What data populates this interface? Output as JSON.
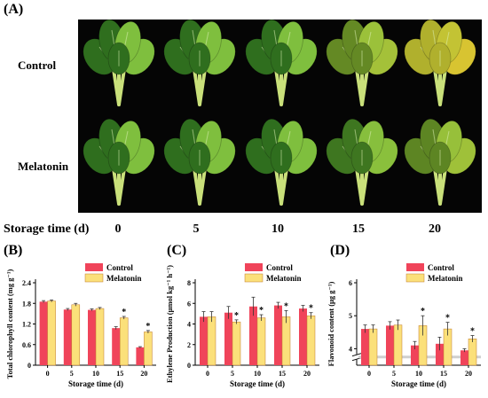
{
  "figure": {
    "panel_a": {
      "label": "(A)",
      "row_labels": [
        "Control",
        "Melatonin"
      ],
      "storage_title": "Storage time (d)",
      "storage_days": [
        "0",
        "5",
        "10",
        "15",
        "20"
      ]
    },
    "panel_b": {
      "label": "(B)"
    },
    "panel_c": {
      "label": "(C)"
    },
    "panel_d": {
      "label": "(D)"
    }
  },
  "colors": {
    "control": "#f0445a",
    "melatonin": "#fbe07a",
    "bar_stroke": "#c07a2a",
    "leaf_dark": "#2f6e1e",
    "leaf_light": "#7fbf3e",
    "leaf_yellow": "#d8c431",
    "stem": "#c9e07a"
  },
  "chart_data": [
    {
      "type": "bar",
      "panel": "(B)",
      "categories": [
        "0",
        "5",
        "10",
        "15",
        "20"
      ],
      "xlabel": "Storage time (d)",
      "ylabel": "Total chlorophyll content (mg g⁻¹)",
      "ylim": [
        0,
        2.4
      ],
      "yticks": [
        "0",
        "0.6",
        "1.2",
        "1.8",
        "2.4"
      ],
      "ytick_values": [
        0,
        0.6,
        1.2,
        1.8,
        2.4
      ],
      "legend": [
        "Control",
        "Melatonin"
      ],
      "legend_position": "top-right",
      "series": [
        {
          "name": "Control",
          "values": [
            1.85,
            1.62,
            1.61,
            1.08,
            0.52
          ],
          "errors": [
            0.03,
            0.03,
            0.03,
            0.04,
            0.02
          ]
        },
        {
          "name": "Melatonin",
          "values": [
            1.87,
            1.76,
            1.65,
            1.38,
            0.97
          ],
          "errors": [
            0.03,
            0.04,
            0.03,
            0.04,
            0.04
          ]
        }
      ],
      "significance": [
        "",
        "",
        "",
        "*",
        "*"
      ]
    },
    {
      "type": "bar",
      "panel": "(C)",
      "categories": [
        "0",
        "5",
        "10",
        "15",
        "20"
      ],
      "xlabel": "Storage time (d)",
      "ylabel": "Ethylene Production (μmol kg⁻¹ h⁻¹)",
      "ylim": [
        0,
        8
      ],
      "yticks": [
        "0",
        "2",
        "4",
        "6",
        "8"
      ],
      "ytick_values": [
        0,
        2,
        4,
        6,
        8
      ],
      "legend": [
        "Control",
        "Melatonin"
      ],
      "legend_position": "top-right",
      "series": [
        {
          "name": "Control",
          "values": [
            4.7,
            5.1,
            5.7,
            5.8,
            5.5
          ],
          "errors": [
            0.5,
            0.6,
            0.9,
            0.3,
            0.3
          ]
        },
        {
          "name": "Melatonin",
          "values": [
            4.7,
            4.2,
            4.6,
            4.7,
            4.8
          ],
          "errors": [
            0.5,
            0.2,
            0.3,
            0.6,
            0.3
          ]
        }
      ],
      "significance": [
        "",
        "*",
        "*",
        "*",
        "*"
      ]
    },
    {
      "type": "bar",
      "panel": "(D)",
      "categories": [
        "0",
        "5",
        "10",
        "15",
        "20"
      ],
      "xlabel": "Storage time (d)",
      "ylabel": "Flavonoid content (μg g⁻¹)",
      "ylim": [
        3.5,
        6
      ],
      "axis_break": true,
      "yticks": [
        "4",
        "5",
        "6"
      ],
      "ytick_values": [
        4,
        5,
        6
      ],
      "legend": [
        "Control",
        "Melatonin"
      ],
      "legend_position": "top-right",
      "series": [
        {
          "name": "Control",
          "values": [
            4.6,
            4.7,
            4.1,
            4.15,
            3.95
          ],
          "errors": [
            0.12,
            0.12,
            0.12,
            0.2,
            0.05
          ]
        },
        {
          "name": "Melatonin",
          "values": [
            4.6,
            4.72,
            4.7,
            4.6,
            4.3
          ],
          "errors": [
            0.12,
            0.15,
            0.3,
            0.2,
            0.1
          ]
        }
      ],
      "significance": [
        "",
        "",
        "*",
        "*",
        "*"
      ]
    }
  ]
}
